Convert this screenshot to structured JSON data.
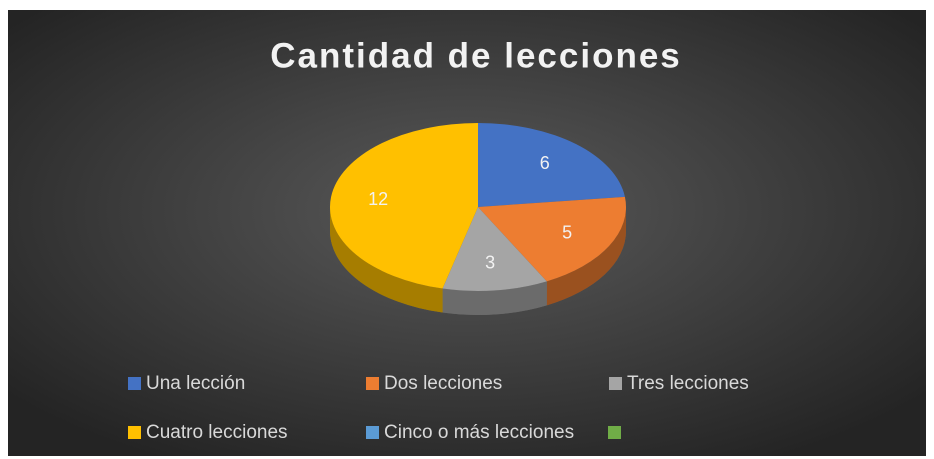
{
  "chart_data": {
    "type": "pie3d",
    "title": "Cantidad de lecciones",
    "categories": [
      "Una lección",
      "Dos lecciones",
      "Tres lecciones",
      "Cuatro lecciones",
      "Cinco o más lecciones",
      null
    ],
    "values": [
      6,
      5,
      3,
      12,
      0,
      0
    ],
    "colors": [
      "#4472c4",
      "#ed7d31",
      "#a5a5a5",
      "#ffc000",
      "#5b9bd5",
      "#70ad47"
    ],
    "legend": "bottom"
  }
}
